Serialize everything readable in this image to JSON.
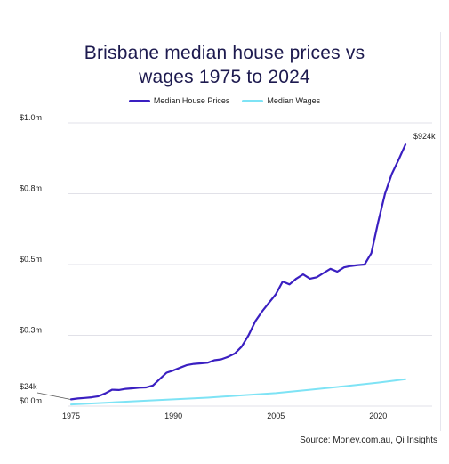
{
  "colors": {
    "house": "#3a1fc1",
    "wages": "#7ee3f5",
    "title": "#1d1a4f",
    "grid": "#e1e1e8"
  },
  "chart_data": {
    "type": "line",
    "title_lines": [
      "Brisbane median house prices vs",
      "wages 1975 to 2024"
    ],
    "xlabel": "",
    "ylabel": "",
    "xlim": [
      1975,
      2024
    ],
    "ylim": [
      0,
      1.0
    ],
    "y_unit": "$ millions",
    "x_ticks": [
      {
        "value": 1975,
        "label": "1975"
      },
      {
        "value": 1990,
        "label": "1990"
      },
      {
        "value": 2005,
        "label": "2005"
      },
      {
        "value": 2020,
        "label": "2020"
      }
    ],
    "y_ticks": [
      {
        "value": 0,
        "label": "$0.0m"
      },
      {
        "value": 0.25,
        "label": "$0.3m"
      },
      {
        "value": 0.5,
        "label": "$0.5m"
      },
      {
        "value": 0.75,
        "label": "$0.8m"
      },
      {
        "value": 1.0,
        "label": "$1.0m"
      }
    ],
    "legend_position": "top-center",
    "grid": "horizontal",
    "series": [
      {
        "name": "Median House Prices",
        "color_key": "house",
        "points": [
          [
            1975,
            0.024
          ],
          [
            1976,
            0.027
          ],
          [
            1977,
            0.029
          ],
          [
            1978,
            0.031
          ],
          [
            1979,
            0.035
          ],
          [
            1980,
            0.045
          ],
          [
            1981,
            0.058
          ],
          [
            1982,
            0.057
          ],
          [
            1983,
            0.061
          ],
          [
            1984,
            0.063
          ],
          [
            1985,
            0.065
          ],
          [
            1986,
            0.066
          ],
          [
            1987,
            0.073
          ],
          [
            1988,
            0.096
          ],
          [
            1989,
            0.118
          ],
          [
            1990,
            0.126
          ],
          [
            1991,
            0.136
          ],
          [
            1992,
            0.145
          ],
          [
            1993,
            0.149
          ],
          [
            1994,
            0.151
          ],
          [
            1995,
            0.153
          ],
          [
            1996,
            0.162
          ],
          [
            1997,
            0.165
          ],
          [
            1998,
            0.174
          ],
          [
            1999,
            0.186
          ],
          [
            2000,
            0.21
          ],
          [
            2001,
            0.25
          ],
          [
            2002,
            0.3
          ],
          [
            2003,
            0.335
          ],
          [
            2004,
            0.365
          ],
          [
            2005,
            0.395
          ],
          [
            2006,
            0.44
          ],
          [
            2007,
            0.43
          ],
          [
            2008,
            0.45
          ],
          [
            2009,
            0.465
          ],
          [
            2010,
            0.45
          ],
          [
            2011,
            0.455
          ],
          [
            2012,
            0.47
          ],
          [
            2013,
            0.485
          ],
          [
            2014,
            0.475
          ],
          [
            2015,
            0.49
          ],
          [
            2016,
            0.495
          ],
          [
            2017,
            0.498
          ],
          [
            2018,
            0.5
          ],
          [
            2019,
            0.54
          ],
          [
            2020,
            0.65
          ],
          [
            2021,
            0.75
          ],
          [
            2022,
            0.82
          ],
          [
            2023,
            0.87
          ],
          [
            2024,
            0.924
          ]
        ]
      },
      {
        "name": "Median Wages",
        "color_key": "wages",
        "points": [
          [
            1975,
            0.006
          ],
          [
            1980,
            0.012
          ],
          [
            1985,
            0.018
          ],
          [
            1990,
            0.024
          ],
          [
            1995,
            0.03
          ],
          [
            2000,
            0.038
          ],
          [
            2005,
            0.046
          ],
          [
            2010,
            0.058
          ],
          [
            2015,
            0.07
          ],
          [
            2020,
            0.083
          ],
          [
            2024,
            0.095
          ]
        ]
      }
    ],
    "annotations": [
      {
        "label": "$924k",
        "x": 2024,
        "y": 0.924,
        "series": "Median House Prices"
      },
      {
        "label": "$24k",
        "x": 1975,
        "y": 0.024,
        "series": "Median House Prices"
      }
    ],
    "source": "Source: Money.com.au, Qi Insights"
  }
}
